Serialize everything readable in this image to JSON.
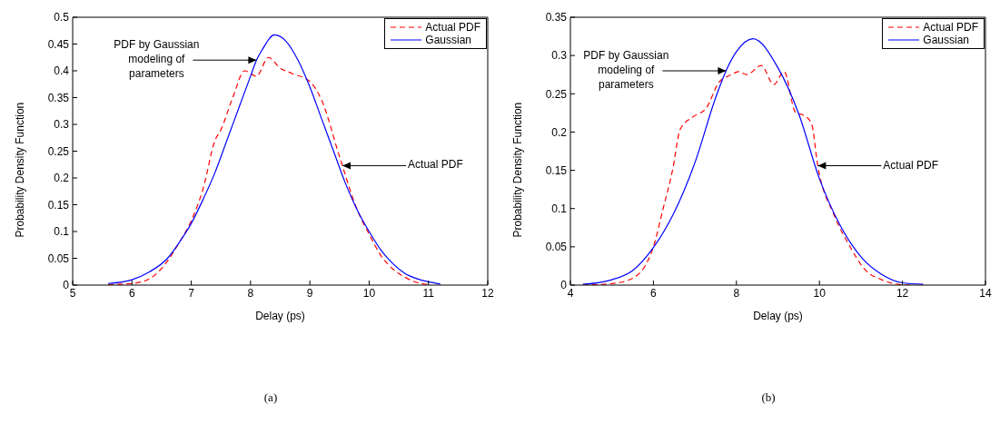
{
  "chart_data": [
    {
      "type": "line",
      "xlabel": "Delay (ps)",
      "ylabel": "Probability Density Function",
      "xlim": [
        5,
        12
      ],
      "xticks": [
        5,
        6,
        7,
        8,
        9,
        10,
        11,
        12
      ],
      "ylim": [
        0,
        0.5
      ],
      "yticks": [
        0,
        0.05,
        0.1,
        0.15,
        0.2,
        0.25,
        0.3,
        0.35,
        0.4,
        0.45,
        0.5
      ],
      "legend": "top right",
      "marker": "none",
      "grid": false,
      "series": [
        {
          "name": "Actual PDF",
          "color": "#ff0000",
          "line_style": "dashed",
          "x": [
            5.6,
            6,
            6.3,
            6.6,
            6.8,
            7,
            7.2,
            7.4,
            7.5,
            7.7,
            7.9,
            8.1,
            8.3,
            8.5,
            8.7,
            9,
            9.2,
            9.5,
            9.8,
            10,
            10.2,
            10.4,
            10.6,
            10.8,
            11
          ],
          "values": [
            0.001,
            0.003,
            0.012,
            0.045,
            0.08,
            0.12,
            0.18,
            0.27,
            0.29,
            0.35,
            0.4,
            0.39,
            0.425,
            0.405,
            0.395,
            0.38,
            0.345,
            0.24,
            0.14,
            0.095,
            0.055,
            0.03,
            0.015,
            0.005,
            0.001
          ]
        },
        {
          "name": "Gaussian",
          "color": "#0000ff",
          "line_style": "solid",
          "x": [
            5.6,
            6,
            6.3,
            6.6,
            6.8,
            7,
            7.2,
            7.4,
            7.6,
            7.8,
            8,
            8.1,
            8.2,
            8.4,
            8.6,
            8.8,
            9,
            9.2,
            9.4,
            9.6,
            9.8,
            10,
            10.2,
            10.4,
            10.6,
            10.8,
            11,
            11.2
          ],
          "values": [
            0.003,
            0.01,
            0.025,
            0.05,
            0.08,
            0.115,
            0.16,
            0.21,
            0.27,
            0.33,
            0.39,
            0.42,
            0.44,
            0.467,
            0.455,
            0.42,
            0.37,
            0.31,
            0.25,
            0.19,
            0.14,
            0.1,
            0.065,
            0.04,
            0.022,
            0.012,
            0.006,
            0.002
          ]
        }
      ],
      "annotations": [
        {
          "text": "PDF by Gaussian modeling of parameters",
          "x": 8.1,
          "y": 0.42
        },
        {
          "text": "Actual PDF",
          "x": 9.55,
          "y": 0.223
        },
        "(a)"
      ]
    },
    {
      "type": "line",
      "xlabel": "Delay (ps)",
      "ylabel": "Probability Density Function",
      "xlim": [
        4,
        14
      ],
      "xticks": [
        4,
        6,
        8,
        10,
        12,
        14
      ],
      "ylim": [
        0,
        0.35
      ],
      "yticks": [
        0,
        0.05,
        0.1,
        0.15,
        0.2,
        0.25,
        0.3,
        0.35
      ],
      "legend": "top right",
      "marker": "none",
      "grid": false,
      "series": [
        {
          "name": "Actual PDF",
          "color": "#ff0000",
          "line_style": "dashed",
          "x": [
            4.3,
            5,
            5.5,
            6,
            6.23,
            6.46,
            6.65,
            6.96,
            7.27,
            7.58,
            7.88,
            8.05,
            8.25,
            8.6,
            8.9,
            9.15,
            9.42,
            9.65,
            9.81,
            9.96,
            10.35,
            10.73,
            11.1,
            11.5,
            11.9,
            12.2
          ],
          "values": [
            0,
            0.002,
            0.009,
            0.05,
            0.099,
            0.15,
            0.204,
            0.22,
            0.231,
            0.265,
            0.275,
            0.279,
            0.275,
            0.287,
            0.262,
            0.279,
            0.226,
            0.221,
            0.211,
            0.156,
            0.092,
            0.051,
            0.02,
            0.007,
            0.001,
            0
          ]
        },
        {
          "name": "Gaussian",
          "color": "#0000ff",
          "line_style": "solid",
          "x": [
            4.3,
            5,
            5.5,
            6,
            6.5,
            7,
            7.5,
            7.75,
            8,
            8.4,
            9,
            9.5,
            10,
            10.5,
            11,
            11.5,
            12,
            12.5
          ],
          "values": [
            0.001,
            0.007,
            0.019,
            0.049,
            0.095,
            0.16,
            0.245,
            0.28,
            0.305,
            0.322,
            0.284,
            0.224,
            0.139,
            0.078,
            0.037,
            0.014,
            0.003,
            0.001
          ]
        }
      ],
      "annotations": [
        {
          "text": "PDF by Gaussian modeling of parameters",
          "x": 7.75,
          "y": 0.28
        },
        {
          "text": "Actual PDF",
          "x": 9.96,
          "y": 0.156
        },
        "(b)"
      ]
    }
  ]
}
